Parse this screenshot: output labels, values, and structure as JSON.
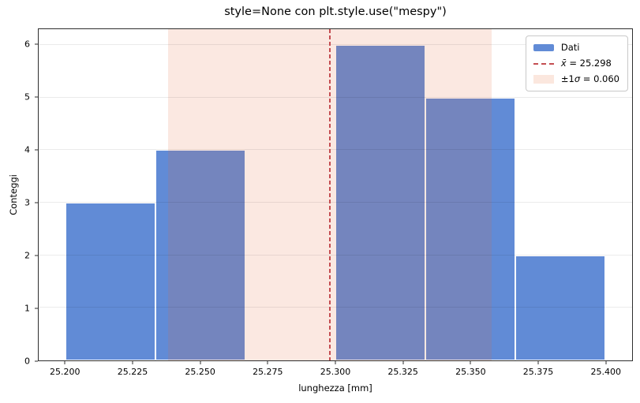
{
  "chart_data": {
    "type": "bar",
    "title": "style=None con plt.style.use(\"mespy\")",
    "xlabel": "lunghezza [mm]",
    "ylabel": "Conteggi",
    "bin_edges": [
      25.2,
      25.2333333,
      25.2666667,
      25.3,
      25.3333333,
      25.3666667,
      25.4
    ],
    "counts": [
      3,
      4,
      0,
      6,
      5,
      2
    ],
    "mean": 25.298,
    "sigma": 0.06,
    "band_range": [
      25.238,
      25.358
    ],
    "xlim": [
      25.19,
      25.41
    ],
    "ylim": [
      0,
      6.3
    ],
    "xticks": [
      25.2,
      25.225,
      25.25,
      25.275,
      25.3,
      25.325,
      25.35,
      25.375,
      25.4
    ],
    "xtick_labels": [
      "25.200",
      "25.225",
      "25.250",
      "25.275",
      "25.300",
      "25.325",
      "25.350",
      "25.375",
      "25.400"
    ],
    "yticks": [
      0,
      1,
      2,
      3,
      4,
      5,
      6
    ],
    "ytick_labels": [
      "0",
      "1",
      "2",
      "3",
      "4",
      "5",
      "6"
    ],
    "grid": "horizontal gridlines, drawn above artists",
    "legend": {
      "position": "upper right",
      "items": [
        {
          "handle": "bar-swatch",
          "color": "#618bd6",
          "pre": "Dati",
          "var": "",
          "rest": ""
        },
        {
          "handle": "dashed-line",
          "color": "#c44e52",
          "pre": "",
          "var": "x̄",
          "rest": " = 25.298"
        },
        {
          "handle": "band-swatch",
          "color": "#fbe7de",
          "pre": "±1",
          "var": "σ",
          "rest": " = 0.060"
        }
      ]
    },
    "colors": {
      "bar_fill": "#618bd6",
      "bar_edge": "#ffffff",
      "band_fill": "rgba(230,101,57,0.15)",
      "band_swatch": "#fbe7de",
      "mean_line": "#c44e52",
      "grid_line": "rgba(0,0,0,0.08)",
      "spine": "#2e2e2e",
      "text": "#000000"
    }
  }
}
